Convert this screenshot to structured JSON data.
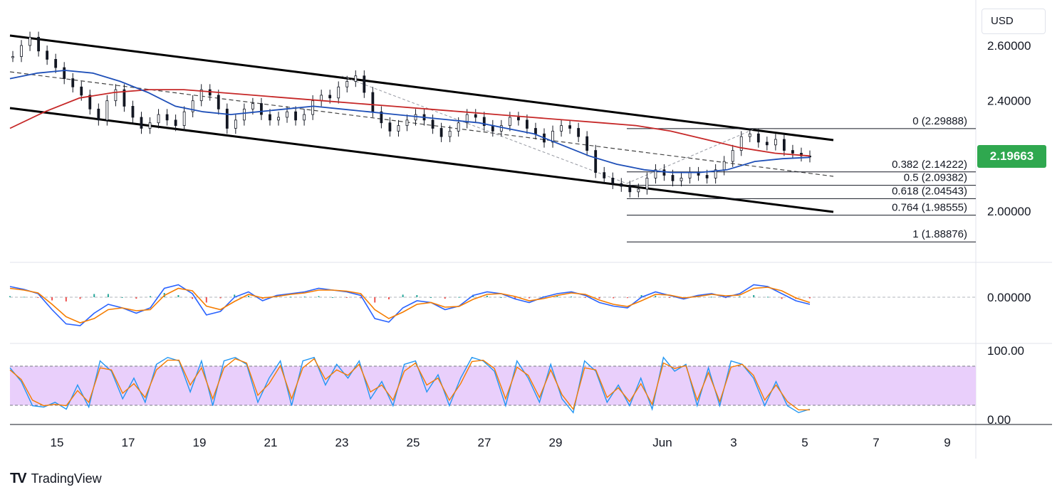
{
  "header": {
    "currency": "USD"
  },
  "brand": {
    "logo_mark": "TV",
    "name": "TradingView"
  },
  "colors": {
    "candle": "#131722",
    "sma_red": "#c62828",
    "sma_blue": "#1e4fb8",
    "price_tag": "#2fa84f",
    "macd_line": "#2962ff",
    "macd_signal": "#f57c00",
    "hist_pos": "#26a69a",
    "hist_neg": "#ef5350",
    "stoch_k": "#2196f3",
    "stoch_d": "#f57c00",
    "stoch_band": "#e9cffb"
  },
  "price_tag": "2.19663",
  "chart_data": [
    {
      "type": "candlestick",
      "panel": "price",
      "y_ticks": [
        "2.60000",
        "2.40000",
        "2.00000"
      ],
      "ylim": [
        1.82,
        2.72
      ],
      "x_ticks": [
        "15",
        "17",
        "19",
        "21",
        "23",
        "25",
        "27",
        "29",
        "Jun",
        "3",
        "5",
        "7",
        "9"
      ],
      "last_price": 2.19663,
      "close_series_approx": [
        2.56,
        2.6,
        2.63,
        2.58,
        2.55,
        2.52,
        2.48,
        2.45,
        2.42,
        2.37,
        2.33,
        2.4,
        2.44,
        2.38,
        2.34,
        2.3,
        2.32,
        2.35,
        2.33,
        2.31,
        2.36,
        2.4,
        2.44,
        2.42,
        2.37,
        2.3,
        2.33,
        2.37,
        2.39,
        2.35,
        2.33,
        2.34,
        2.36,
        2.33,
        2.35,
        2.4,
        2.42,
        2.41,
        2.45,
        2.47,
        2.49,
        2.43,
        2.36,
        2.32,
        2.29,
        2.31,
        2.33,
        2.35,
        2.33,
        2.3,
        2.27,
        2.29,
        2.32,
        2.35,
        2.34,
        2.31,
        2.29,
        2.31,
        2.34,
        2.33,
        2.3,
        2.28,
        2.25,
        2.29,
        2.31,
        2.3,
        2.27,
        2.22,
        2.14,
        2.12,
        2.1,
        2.09,
        2.07,
        2.08,
        2.12,
        2.15,
        2.13,
        2.11,
        2.12,
        2.14,
        2.13,
        2.12,
        2.15,
        2.18,
        2.22,
        2.27,
        2.28,
        2.25,
        2.24,
        2.26,
        2.22,
        2.21,
        2.2,
        2.19663
      ],
      "sma_fast_approx": [
        2.48,
        2.5,
        2.51,
        2.5,
        2.47,
        2.43,
        2.38,
        2.36,
        2.35,
        2.36,
        2.37,
        2.38,
        2.37,
        2.36,
        2.35,
        2.34,
        2.33,
        2.32,
        2.3,
        2.28,
        2.24,
        2.2,
        2.17,
        2.15,
        2.14,
        2.14,
        2.15,
        2.18,
        2.19,
        2.195
      ],
      "sma_slow_approx": [
        2.3,
        2.36,
        2.41,
        2.43,
        2.44,
        2.44,
        2.43,
        2.42,
        2.41,
        2.4,
        2.39,
        2.38,
        2.37,
        2.36,
        2.35,
        2.34,
        2.33,
        2.32,
        2.31,
        2.29,
        2.26,
        2.23,
        2.21,
        2.2
      ]
    },
    {
      "type": "fibonacci",
      "panel": "price",
      "levels": [
        {
          "label": "0 (2.29888)",
          "value": 2.29888
        },
        {
          "label": "0.382 (2.14222)",
          "value": 2.14222
        },
        {
          "label": "0.5 (2.09382)",
          "value": 2.09382
        },
        {
          "label": "0.618 (2.04543)",
          "value": 2.04543
        },
        {
          "label": "0.764 (1.98555)",
          "value": 1.98555
        },
        {
          "label": "1 (1.88876)",
          "value": 1.88876
        }
      ]
    },
    {
      "type": "line",
      "panel": "macd",
      "y_ticks": [
        "0.00000"
      ],
      "series": [
        {
          "values": [
            30,
            22,
            10,
            -35,
            -75,
            -80,
            -45,
            -20,
            -30,
            -45,
            -30,
            25,
            35,
            10,
            -50,
            -40,
            0,
            15,
            -10,
            5,
            10,
            15,
            25,
            20,
            15,
            5,
            -60,
            -70,
            -30,
            -10,
            -15,
            -35,
            -25,
            5,
            15,
            10,
            -5,
            -15,
            0,
            10,
            15,
            5,
            -15,
            -25,
            -30,
            0,
            15,
            5,
            -5,
            5,
            10,
            0,
            10,
            35,
            30,
            10,
            -10,
            -20
          ]
        },
        {
          "values": [
            25,
            20,
            12,
            -20,
            -55,
            -72,
            -60,
            -35,
            -30,
            -38,
            -35,
            5,
            25,
            18,
            -25,
            -35,
            -12,
            8,
            -2,
            2,
            8,
            12,
            20,
            20,
            17,
            10,
            -35,
            -60,
            -42,
            -20,
            -15,
            -28,
            -26,
            -6,
            8,
            10,
            2,
            -10,
            -4,
            5,
            12,
            8,
            -8,
            -20,
            -26,
            -10,
            8,
            6,
            -2,
            2,
            8,
            4,
            6,
            25,
            28,
            18,
            -2,
            -15
          ]
        }
      ]
    },
    {
      "type": "line",
      "panel": "stochastic",
      "y_ticks": [
        "100.00",
        "0.00"
      ],
      "ylim": [
        0,
        100
      ],
      "bands": [
        20,
        80
      ],
      "series": [
        {
          "values": [
            75,
            55,
            20,
            18,
            25,
            15,
            50,
            18,
            85,
            70,
            30,
            60,
            25,
            80,
            90,
            85,
            40,
            85,
            20,
            85,
            90,
            80,
            25,
            60,
            85,
            20,
            85,
            90,
            50,
            80,
            60,
            85,
            30,
            55,
            20,
            80,
            85,
            40,
            65,
            20,
            60,
            90,
            85,
            70,
            20,
            85,
            60,
            25,
            80,
            30,
            10,
            85,
            70,
            25,
            50,
            20,
            60,
            15,
            90,
            70,
            80,
            20,
            75,
            20,
            85,
            80,
            60,
            20,
            55,
            20,
            10,
            15
          ]
        },
        {
          "values": [
            72,
            58,
            28,
            20,
            22,
            20,
            42,
            25,
            75,
            72,
            38,
            52,
            32,
            72,
            86,
            86,
            50,
            75,
            30,
            75,
            88,
            82,
            35,
            52,
            78,
            30,
            75,
            88,
            58,
            72,
            64,
            80,
            40,
            50,
            28,
            70,
            82,
            50,
            60,
            28,
            52,
            84,
            86,
            74,
            30,
            76,
            64,
            32,
            72,
            36,
            15,
            75,
            72,
            32,
            46,
            26,
            52,
            22,
            82,
            74,
            78,
            28,
            68,
            26,
            76,
            80,
            64,
            28,
            50,
            26,
            14,
            14
          ]
        }
      ]
    }
  ]
}
